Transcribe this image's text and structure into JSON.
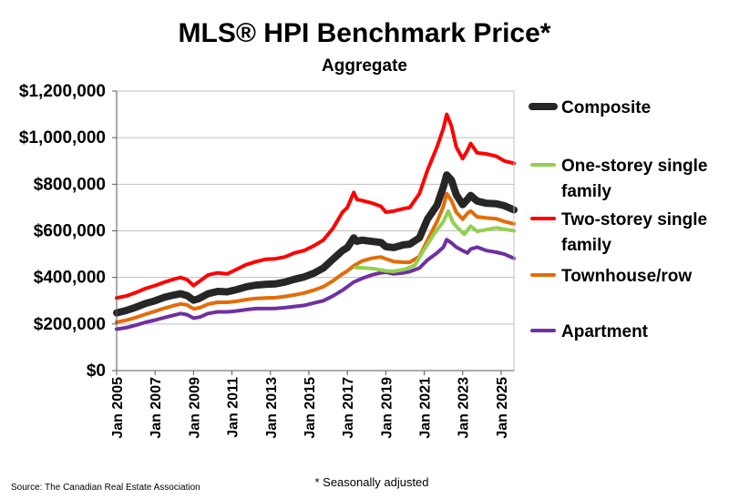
{
  "chart_data": {
    "type": "line",
    "title": "MLS® HPI Benchmark Price*",
    "subtitle": "Aggregate",
    "xlabel": "",
    "ylabel": "",
    "ylim": [
      0,
      1200000
    ],
    "xlim": [
      "2005-01",
      "2025-09"
    ],
    "y_ticks": [
      "$0",
      "$200,000",
      "$400,000",
      "$600,000",
      "$800,000",
      "$1,000,000",
      "$1,200,000"
    ],
    "y_tick_values": [
      0,
      200000,
      400000,
      600000,
      800000,
      1000000,
      1200000
    ],
    "x_ticks": [
      "Jan 2005",
      "Jan 2007",
      "Jan 2009",
      "Jan 2011",
      "Jan 2013",
      "Jan 2015",
      "Jan 2017",
      "Jan 2019",
      "Jan 2021",
      "Jan 2023",
      "Jan 2025"
    ],
    "grid": true,
    "legend_position": "right",
    "series": [
      {
        "name": "Composite",
        "color": "#262626",
        "points": [
          [
            "2005-01",
            248000
          ],
          [
            "2005-07",
            258000
          ],
          [
            "2006-01",
            272000
          ],
          [
            "2006-07",
            288000
          ],
          [
            "2007-01",
            300000
          ],
          [
            "2007-07",
            315000
          ],
          [
            "2008-01",
            325000
          ],
          [
            "2008-05",
            330000
          ],
          [
            "2008-09",
            322000
          ],
          [
            "2009-01",
            302000
          ],
          [
            "2009-04",
            308000
          ],
          [
            "2009-10",
            330000
          ],
          [
            "2010-04",
            340000
          ],
          [
            "2010-10",
            338000
          ],
          [
            "2011-04",
            348000
          ],
          [
            "2011-10",
            360000
          ],
          [
            "2012-04",
            367000
          ],
          [
            "2012-10",
            370000
          ],
          [
            "2013-04",
            372000
          ],
          [
            "2013-10",
            380000
          ],
          [
            "2014-04",
            392000
          ],
          [
            "2014-10",
            402000
          ],
          [
            "2015-04",
            418000
          ],
          [
            "2015-10",
            440000
          ],
          [
            "2016-04",
            478000
          ],
          [
            "2016-10",
            515000
          ],
          [
            "2017-01",
            528000
          ],
          [
            "2017-05",
            570000
          ],
          [
            "2017-07",
            555000
          ],
          [
            "2017-10",
            560000
          ],
          [
            "2018-04",
            555000
          ],
          [
            "2018-10",
            550000
          ],
          [
            "2019-01",
            532000
          ],
          [
            "2019-06",
            528000
          ],
          [
            "2019-12",
            540000
          ],
          [
            "2020-04",
            543000
          ],
          [
            "2020-10",
            570000
          ],
          [
            "2021-03",
            650000
          ],
          [
            "2021-09",
            710000
          ],
          [
            "2022-01",
            790000
          ],
          [
            "2022-03",
            840000
          ],
          [
            "2022-06",
            818000
          ],
          [
            "2022-09",
            755000
          ],
          [
            "2023-01",
            712000
          ],
          [
            "2023-04",
            735000
          ],
          [
            "2023-06",
            752000
          ],
          [
            "2023-10",
            728000
          ],
          [
            "2024-04",
            718000
          ],
          [
            "2024-10",
            716000
          ],
          [
            "2025-03",
            708000
          ],
          [
            "2025-09",
            690000
          ]
        ]
      },
      {
        "name": "One-storey single family",
        "color": "#92d050",
        "points": [
          [
            "2017-06",
            443000
          ],
          [
            "2018-01",
            440000
          ],
          [
            "2018-06",
            437000
          ],
          [
            "2019-01",
            428000
          ],
          [
            "2019-06",
            426000
          ],
          [
            "2020-01",
            435000
          ],
          [
            "2020-07",
            452000
          ],
          [
            "2021-01",
            520000
          ],
          [
            "2021-07",
            585000
          ],
          [
            "2022-01",
            640000
          ],
          [
            "2022-04",
            685000
          ],
          [
            "2022-07",
            635000
          ],
          [
            "2022-10",
            612000
          ],
          [
            "2023-02",
            585000
          ],
          [
            "2023-06",
            620000
          ],
          [
            "2023-10",
            598000
          ],
          [
            "2024-04",
            605000
          ],
          [
            "2024-10",
            613000
          ],
          [
            "2025-03",
            607000
          ],
          [
            "2025-09",
            600000
          ]
        ]
      },
      {
        "name": "Two-storey single family",
        "color": "#ff0000",
        "points": [
          [
            "2005-01",
            312000
          ],
          [
            "2005-07",
            320000
          ],
          [
            "2006-01",
            335000
          ],
          [
            "2006-07",
            352000
          ],
          [
            "2007-01",
            365000
          ],
          [
            "2007-07",
            380000
          ],
          [
            "2008-01",
            393000
          ],
          [
            "2008-05",
            400000
          ],
          [
            "2008-09",
            390000
          ],
          [
            "2009-01",
            365000
          ],
          [
            "2009-05",
            385000
          ],
          [
            "2009-10",
            410000
          ],
          [
            "2010-04",
            420000
          ],
          [
            "2010-10",
            415000
          ],
          [
            "2011-04",
            435000
          ],
          [
            "2011-10",
            455000
          ],
          [
            "2012-04",
            468000
          ],
          [
            "2012-10",
            478000
          ],
          [
            "2013-04",
            480000
          ],
          [
            "2013-10",
            488000
          ],
          [
            "2014-04",
            505000
          ],
          [
            "2014-10",
            515000
          ],
          [
            "2015-04",
            535000
          ],
          [
            "2015-10",
            560000
          ],
          [
            "2016-04",
            610000
          ],
          [
            "2016-10",
            680000
          ],
          [
            "2017-01",
            700000
          ],
          [
            "2017-05",
            765000
          ],
          [
            "2017-07",
            735000
          ],
          [
            "2017-10",
            730000
          ],
          [
            "2018-04",
            720000
          ],
          [
            "2018-10",
            705000
          ],
          [
            "2019-01",
            680000
          ],
          [
            "2019-06",
            685000
          ],
          [
            "2019-12",
            695000
          ],
          [
            "2020-04",
            700000
          ],
          [
            "2020-10",
            760000
          ],
          [
            "2021-03",
            860000
          ],
          [
            "2021-09",
            960000
          ],
          [
            "2022-01",
            1040000
          ],
          [
            "2022-03",
            1100000
          ],
          [
            "2022-06",
            1050000
          ],
          [
            "2022-09",
            960000
          ],
          [
            "2023-01",
            910000
          ],
          [
            "2023-04",
            945000
          ],
          [
            "2023-06",
            975000
          ],
          [
            "2023-10",
            935000
          ],
          [
            "2024-04",
            930000
          ],
          [
            "2024-10",
            920000
          ],
          [
            "2025-03",
            900000
          ],
          [
            "2025-09",
            890000
          ]
        ]
      },
      {
        "name": "Townhouse/row",
        "color": "#e36c09",
        "points": [
          [
            "2005-01",
            208000
          ],
          [
            "2005-07",
            216000
          ],
          [
            "2006-01",
            228000
          ],
          [
            "2006-07",
            242000
          ],
          [
            "2007-01",
            255000
          ],
          [
            "2007-07",
            268000
          ],
          [
            "2008-01",
            280000
          ],
          [
            "2008-05",
            286000
          ],
          [
            "2008-09",
            282000
          ],
          [
            "2009-01",
            265000
          ],
          [
            "2009-05",
            270000
          ],
          [
            "2009-10",
            285000
          ],
          [
            "2010-04",
            293000
          ],
          [
            "2010-10",
            293000
          ],
          [
            "2011-04",
            298000
          ],
          [
            "2011-10",
            305000
          ],
          [
            "2012-04",
            310000
          ],
          [
            "2012-10",
            312000
          ],
          [
            "2013-04",
            313000
          ],
          [
            "2013-10",
            318000
          ],
          [
            "2014-04",
            325000
          ],
          [
            "2014-10",
            333000
          ],
          [
            "2015-04",
            345000
          ],
          [
            "2015-10",
            360000
          ],
          [
            "2016-04",
            385000
          ],
          [
            "2016-10",
            415000
          ],
          [
            "2017-01",
            428000
          ],
          [
            "2017-05",
            450000
          ],
          [
            "2017-10",
            470000
          ],
          [
            "2018-04",
            482000
          ],
          [
            "2018-10",
            488000
          ],
          [
            "2019-01",
            480000
          ],
          [
            "2019-06",
            468000
          ],
          [
            "2019-12",
            465000
          ],
          [
            "2020-04",
            465000
          ],
          [
            "2020-10",
            490000
          ],
          [
            "2021-03",
            560000
          ],
          [
            "2021-09",
            640000
          ],
          [
            "2022-01",
            705000
          ],
          [
            "2022-03",
            760000
          ],
          [
            "2022-06",
            730000
          ],
          [
            "2022-09",
            680000
          ],
          [
            "2023-01",
            650000
          ],
          [
            "2023-04",
            675000
          ],
          [
            "2023-06",
            685000
          ],
          [
            "2023-10",
            660000
          ],
          [
            "2024-04",
            655000
          ],
          [
            "2024-10",
            652000
          ],
          [
            "2025-03",
            640000
          ],
          [
            "2025-09",
            630000
          ]
        ]
      },
      {
        "name": "Apartment",
        "color": "#7030a0",
        "points": [
          [
            "2005-01",
            178000
          ],
          [
            "2005-07",
            184000
          ],
          [
            "2006-01",
            195000
          ],
          [
            "2006-07",
            207000
          ],
          [
            "2007-01",
            217000
          ],
          [
            "2007-07",
            228000
          ],
          [
            "2008-01",
            238000
          ],
          [
            "2008-05",
            245000
          ],
          [
            "2008-09",
            240000
          ],
          [
            "2009-01",
            225000
          ],
          [
            "2009-05",
            230000
          ],
          [
            "2009-10",
            245000
          ],
          [
            "2010-04",
            252000
          ],
          [
            "2010-10",
            252000
          ],
          [
            "2011-04",
            256000
          ],
          [
            "2011-10",
            262000
          ],
          [
            "2012-04",
            266000
          ],
          [
            "2012-10",
            266000
          ],
          [
            "2013-04",
            267000
          ],
          [
            "2013-10",
            270000
          ],
          [
            "2014-04",
            275000
          ],
          [
            "2014-10",
            280000
          ],
          [
            "2015-04",
            290000
          ],
          [
            "2015-10",
            300000
          ],
          [
            "2016-04",
            320000
          ],
          [
            "2016-10",
            345000
          ],
          [
            "2017-01",
            360000
          ],
          [
            "2017-05",
            380000
          ],
          [
            "2017-10",
            395000
          ],
          [
            "2018-04",
            410000
          ],
          [
            "2018-10",
            420000
          ],
          [
            "2019-01",
            422000
          ],
          [
            "2019-06",
            415000
          ],
          [
            "2019-12",
            420000
          ],
          [
            "2020-04",
            425000
          ],
          [
            "2020-10",
            440000
          ],
          [
            "2021-03",
            475000
          ],
          [
            "2021-09",
            505000
          ],
          [
            "2022-01",
            530000
          ],
          [
            "2022-03",
            562000
          ],
          [
            "2022-06",
            548000
          ],
          [
            "2022-09",
            530000
          ],
          [
            "2023-01",
            515000
          ],
          [
            "2023-04",
            505000
          ],
          [
            "2023-06",
            522000
          ],
          [
            "2023-10",
            530000
          ],
          [
            "2024-04",
            515000
          ],
          [
            "2024-10",
            508000
          ],
          [
            "2025-03",
            500000
          ],
          [
            "2025-09",
            482000
          ]
        ]
      }
    ]
  },
  "footer": {
    "source": "Source: The Canadian Real Estate Association",
    "note": "* Seasonally adjusted"
  }
}
